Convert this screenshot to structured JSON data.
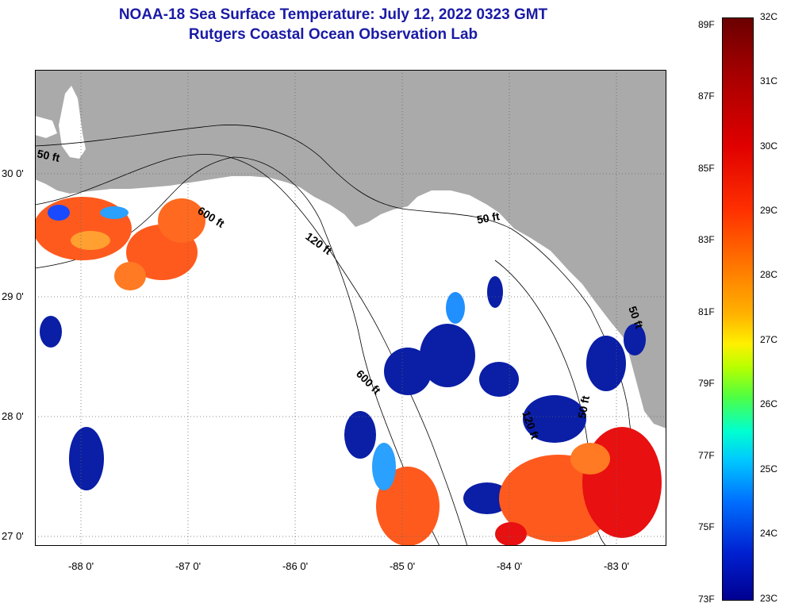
{
  "title": {
    "line1": "NOAA-18 Sea Surface Temperature:  July 12, 2022 0323 GMT",
    "line2": "Rutgers Coastal Ocean Observation Lab"
  },
  "map": {
    "lat_labels": [
      "30 0'",
      "29 0'",
      "28 0'",
      "27 0'"
    ],
    "lon_labels": [
      "-88 0'",
      "-87 0'",
      "-86 0'",
      "-85 0'",
      "-84 0'",
      "-83 0'"
    ],
    "contour_labels": [
      "50 ft",
      "600 ft",
      "120 ft",
      "50 ft",
      "600 ft",
      "120 ft",
      "50 ft",
      "50 ft"
    ]
  },
  "colorbar": {
    "fahrenheit": [
      "89F",
      "87F",
      "85F",
      "83F",
      "81F",
      "79F",
      "77F",
      "75F",
      "73F"
    ],
    "celsius": [
      "32C",
      "31C",
      "30C",
      "29C",
      "28C",
      "27C",
      "26C",
      "25C",
      "24C",
      "23C"
    ]
  },
  "colors": {
    "land": "#aaaaaa",
    "cloud": "#ffffff",
    "cool": "#0a1ea6",
    "warm": "#ff5a1e",
    "hot": "#e81010",
    "title": "#1a1aa6"
  }
}
